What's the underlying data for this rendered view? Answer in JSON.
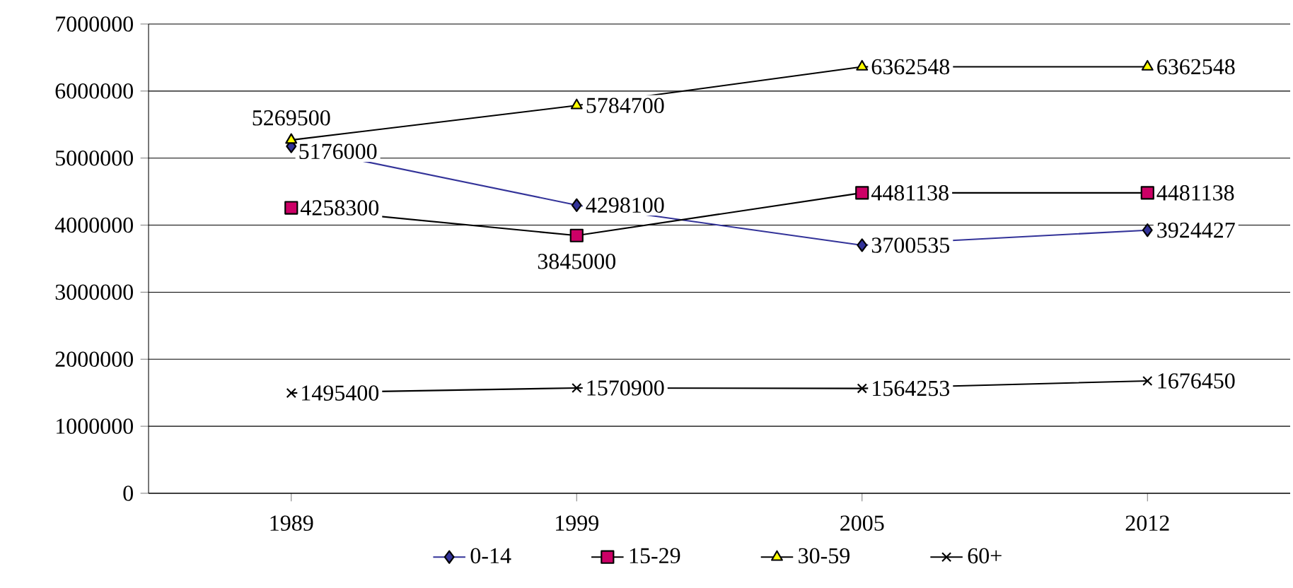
{
  "chart_data": {
    "type": "line",
    "categories": [
      "1989",
      "1999",
      "2005",
      "2012"
    ],
    "series": [
      {
        "name": "0-14",
        "color": "#333399",
        "marker": "diamond",
        "values": [
          5176000,
          4298100,
          3700535,
          3924427
        ]
      },
      {
        "name": "15-29",
        "color": "#cc0066",
        "marker": "square",
        "values": [
          4258300,
          3845000,
          4481138,
          4481138
        ]
      },
      {
        "name": "30-59",
        "color": "#ffff00",
        "marker": "triangle",
        "values": [
          5269500,
          5784700,
          6362548,
          6362548
        ]
      },
      {
        "name": "60+",
        "color": "#000000",
        "marker": "cross",
        "values": [
          1495400,
          1570900,
          1564253,
          1676450
        ]
      }
    ],
    "ylim": [
      0,
      7000000
    ],
    "yticks": [
      0,
      1000000,
      2000000,
      3000000,
      4000000,
      5000000,
      6000000,
      7000000
    ],
    "grid": "y",
    "legend": "bottom",
    "data_labels": true
  }
}
